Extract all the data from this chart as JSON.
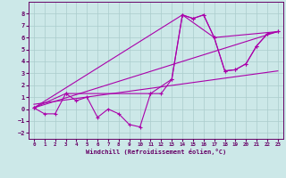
{
  "xlabel": "Windchill (Refroidissement éolien,°C)",
  "background_color": "#cce8e8",
  "grid_color": "#aacccc",
  "line_color": "#aa00aa",
  "xlim": [
    -0.5,
    23.5
  ],
  "ylim": [
    -2.5,
    9.0
  ],
  "xticks": [
    0,
    1,
    2,
    3,
    4,
    5,
    6,
    7,
    8,
    9,
    10,
    11,
    12,
    13,
    14,
    15,
    16,
    17,
    18,
    19,
    20,
    21,
    22,
    23
  ],
  "yticks": [
    -2,
    -1,
    0,
    1,
    2,
    3,
    4,
    5,
    6,
    7,
    8
  ],
  "line1_x": [
    0,
    1,
    2,
    3,
    4,
    5,
    6,
    7,
    8,
    9,
    10,
    11,
    12,
    13,
    14,
    15,
    16,
    17,
    18,
    19,
    20,
    21,
    22,
    23
  ],
  "line1_y": [
    0.1,
    -0.4,
    -0.4,
    1.3,
    0.7,
    1.0,
    -0.7,
    0.0,
    -0.4,
    -1.3,
    -1.5,
    1.3,
    1.3,
    2.5,
    7.9,
    7.6,
    7.9,
    6.0,
    3.2,
    3.3,
    3.8,
    5.3,
    6.3,
    6.5
  ],
  "line2_x": [
    0,
    3,
    11,
    13,
    14,
    15,
    16,
    17,
    18,
    19,
    20,
    21,
    22,
    23
  ],
  "line2_y": [
    0.1,
    1.3,
    1.3,
    2.5,
    7.9,
    7.6,
    7.9,
    6.0,
    3.2,
    3.3,
    3.8,
    5.3,
    6.3,
    6.5
  ],
  "line3_x": [
    0,
    23
  ],
  "line3_y": [
    0.4,
    3.2
  ],
  "line4_x": [
    0,
    23
  ],
  "line4_y": [
    0.1,
    6.5
  ],
  "line5_x": [
    0,
    14,
    17,
    23
  ],
  "line5_y": [
    0.1,
    7.9,
    6.0,
    6.5
  ]
}
